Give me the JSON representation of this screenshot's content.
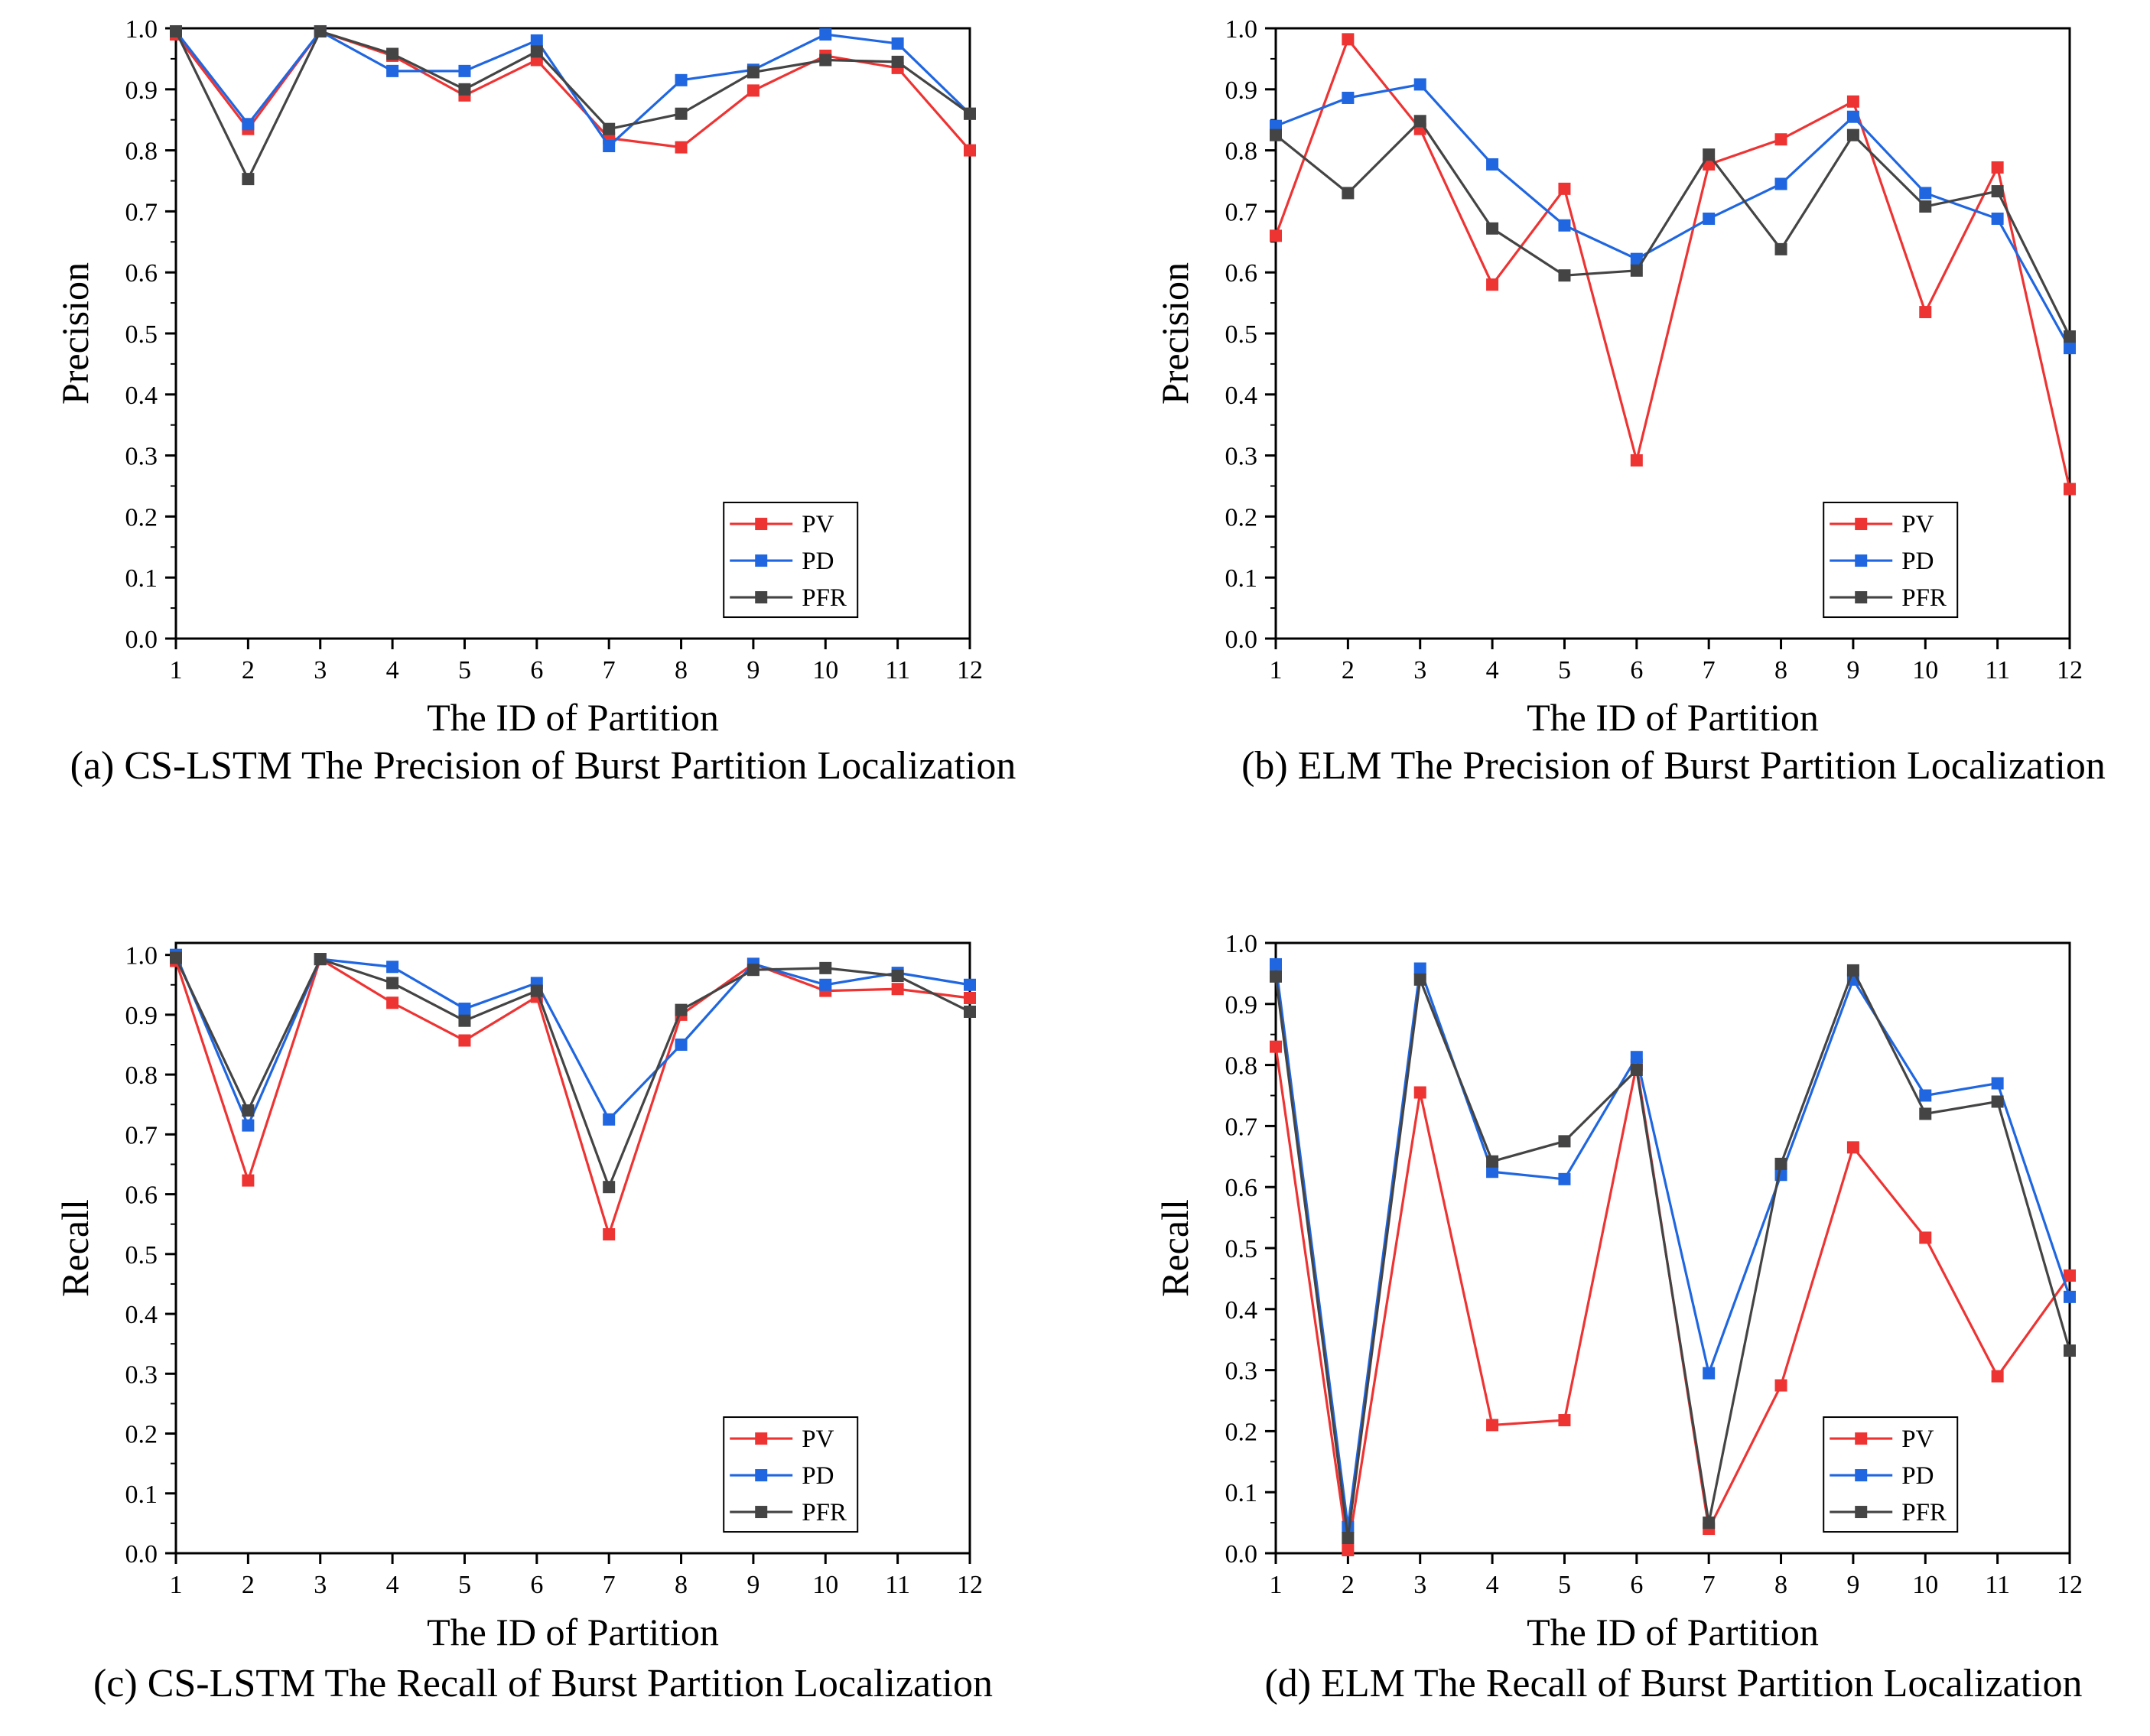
{
  "chart_data": [
    {
      "id": "a",
      "type": "line",
      "title": "",
      "caption": "(a) CS-LSTM The Precision of Burst Partition Localization",
      "xlabel": "The ID of Partition",
      "ylabel": "Precision",
      "x": [
        1,
        2,
        3,
        4,
        5,
        6,
        7,
        8,
        9,
        10,
        11,
        12
      ],
      "x_tick_labels": [
        "1",
        "2",
        "3",
        "4",
        "5",
        "6",
        "7",
        "8",
        "9",
        "10",
        "11",
        "12"
      ],
      "y_tick_labels": [
        "0.0",
        "0.1",
        "0.2",
        "0.3",
        "0.4",
        "0.5",
        "0.6",
        "0.7",
        "0.8",
        "0.9",
        "1.0"
      ],
      "ylim": [
        0,
        1
      ],
      "grid": false,
      "legend_position": "bottom-right",
      "series": [
        {
          "name": "PV",
          "color": "#ee3333",
          "values": [
            0.99,
            0.835,
            0.995,
            0.955,
            0.89,
            0.948,
            0.82,
            0.805,
            0.898,
            0.955,
            0.935,
            0.8
          ]
        },
        {
          "name": "PD",
          "color": "#1f66e0",
          "values": [
            0.995,
            0.843,
            0.995,
            0.93,
            0.93,
            0.98,
            0.807,
            0.915,
            0.932,
            0.99,
            0.975,
            0.86
          ]
        },
        {
          "name": "PFR",
          "color": "#444444",
          "values": [
            0.995,
            0.753,
            0.995,
            0.958,
            0.9,
            0.962,
            0.835,
            0.86,
            0.928,
            0.948,
            0.945,
            0.86
          ]
        }
      ]
    },
    {
      "id": "b",
      "type": "line",
      "title": "",
      "caption": "(b) ELM The Precision of Burst Partition Localization",
      "xlabel": "The ID of Partition",
      "ylabel": "Precision",
      "x": [
        1,
        2,
        3,
        4,
        5,
        6,
        7,
        8,
        9,
        10,
        11,
        12
      ],
      "x_tick_labels": [
        "1",
        "2",
        "3",
        "4",
        "5",
        "6",
        "7",
        "8",
        "9",
        "10",
        "11",
        "12"
      ],
      "y_tick_labels": [
        "0.0",
        "0.1",
        "0.2",
        "0.3",
        "0.4",
        "0.5",
        "0.6",
        "0.7",
        "0.8",
        "0.9",
        "1.0"
      ],
      "ylim": [
        0,
        1
      ],
      "grid": false,
      "legend_position": "bottom-right",
      "series": [
        {
          "name": "PV",
          "color": "#ee3333",
          "values": [
            0.66,
            0.982,
            0.835,
            0.58,
            0.737,
            0.292,
            0.777,
            0.818,
            0.88,
            0.535,
            0.772,
            0.245
          ]
        },
        {
          "name": "PD",
          "color": "#1f66e0",
          "values": [
            0.84,
            0.886,
            0.908,
            0.777,
            0.677,
            0.622,
            0.688,
            0.745,
            0.855,
            0.73,
            0.688,
            0.476
          ]
        },
        {
          "name": "PFR",
          "color": "#444444",
          "values": [
            0.825,
            0.73,
            0.848,
            0.672,
            0.595,
            0.603,
            0.793,
            0.638,
            0.825,
            0.708,
            0.733,
            0.495
          ]
        }
      ]
    },
    {
      "id": "c",
      "type": "line",
      "title": "",
      "caption": "(c) CS-LSTM The Recall of Burst Partition Localization",
      "xlabel": "The ID of Partition",
      "ylabel": "Recall",
      "x": [
        1,
        2,
        3,
        4,
        5,
        6,
        7,
        8,
        9,
        10,
        11,
        12
      ],
      "x_tick_labels": [
        "1",
        "2",
        "3",
        "4",
        "5",
        "6",
        "7",
        "8",
        "9",
        "10",
        "11",
        "12"
      ],
      "y_tick_labels": [
        "0.0",
        "0.1",
        "0.2",
        "0.3",
        "0.4",
        "0.5",
        "0.6",
        "0.7",
        "0.8",
        "0.9",
        "1.0"
      ],
      "ylim": [
        0,
        1.02
      ],
      "grid": false,
      "legend_position": "bottom-right",
      "series": [
        {
          "name": "PV",
          "color": "#ee3333",
          "values": [
            0.99,
            0.623,
            0.993,
            0.92,
            0.857,
            0.93,
            0.533,
            0.9,
            0.985,
            0.94,
            0.943,
            0.928
          ]
        },
        {
          "name": "PD",
          "color": "#1f66e0",
          "values": [
            1.0,
            0.715,
            0.993,
            0.98,
            0.91,
            0.953,
            0.725,
            0.85,
            0.985,
            0.95,
            0.97,
            0.95
          ]
        },
        {
          "name": "PFR",
          "color": "#444444",
          "values": [
            0.995,
            0.74,
            0.993,
            0.953,
            0.89,
            0.94,
            0.612,
            0.908,
            0.975,
            0.978,
            0.965,
            0.905
          ]
        }
      ]
    },
    {
      "id": "d",
      "type": "line",
      "title": "",
      "caption": "(d) ELM The Recall of Burst Partition Localization",
      "xlabel": "The ID of Partition",
      "ylabel": "Recall",
      "x": [
        1,
        2,
        3,
        4,
        5,
        6,
        7,
        8,
        9,
        10,
        11,
        12
      ],
      "x_tick_labels": [
        "1",
        "2",
        "3",
        "4",
        "5",
        "6",
        "7",
        "8",
        "9",
        "10",
        "11",
        "12"
      ],
      "y_tick_labels": [
        "0.0",
        "0.1",
        "0.2",
        "0.3",
        "0.4",
        "0.5",
        "0.6",
        "0.7",
        "0.8",
        "0.9",
        "1.0"
      ],
      "ylim": [
        0,
        1
      ],
      "grid": false,
      "legend_position": "bottom-right",
      "series": [
        {
          "name": "PV",
          "color": "#ee3333",
          "values": [
            0.83,
            0.005,
            0.755,
            0.21,
            0.218,
            0.8,
            0.04,
            0.275,
            0.665,
            0.517,
            0.29,
            0.455
          ]
        },
        {
          "name": "PD",
          "color": "#1f66e0",
          "values": [
            0.965,
            0.043,
            0.958,
            0.625,
            0.613,
            0.813,
            0.295,
            0.62,
            0.94,
            0.75,
            0.77,
            0.42
          ]
        },
        {
          "name": "PFR",
          "color": "#444444",
          "values": [
            0.945,
            0.025,
            0.94,
            0.642,
            0.675,
            0.792,
            0.05,
            0.638,
            0.955,
            0.72,
            0.74,
            0.332
          ]
        }
      ]
    }
  ]
}
